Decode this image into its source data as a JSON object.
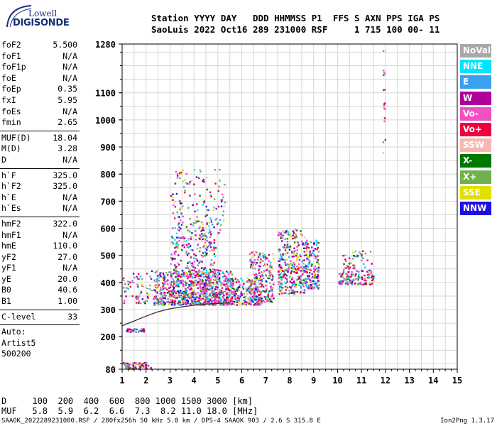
{
  "logo": {
    "line1": "Lowell",
    "line2": "DIGISONDE"
  },
  "header": {
    "line1": "Station YYYY DAY   DDD HHMMSS P1  FFS S AXN PPS IGA PS",
    "line2": "SaoLuis 2022 Oct16 289 231000 RSF     1 715 100 00- 11"
  },
  "params": {
    "group1": [
      {
        "name": "foF2",
        "value": "5.500"
      },
      {
        "name": "foF1",
        "value": "N/A"
      },
      {
        "name": "foF1p",
        "value": "N/A"
      },
      {
        "name": "foE",
        "value": "N/A"
      },
      {
        "name": "foEp",
        "value": "0.35"
      },
      {
        "name": "fxI",
        "value": "5.95"
      },
      {
        "name": "foEs",
        "value": "N/A"
      },
      {
        "name": "fmin",
        "value": "2.65"
      }
    ],
    "group2": [
      {
        "name": "MUF(D)",
        "value": "18.04"
      },
      {
        "name": "M(D)",
        "value": "3.28"
      },
      {
        "name": "D",
        "value": "N/A"
      }
    ],
    "group3": [
      {
        "name": "h`F",
        "value": "325.0"
      },
      {
        "name": "h`F2",
        "value": "325.0"
      },
      {
        "name": "h`E",
        "value": "N/A"
      },
      {
        "name": "h`Es",
        "value": "N/A"
      }
    ],
    "group4": [
      {
        "name": "hmF2",
        "value": "322.0"
      },
      {
        "name": "hmF1",
        "value": "N/A"
      },
      {
        "name": "hmE",
        "value": "110.0"
      },
      {
        "name": "yF2",
        "value": "27.0"
      },
      {
        "name": "yF1",
        "value": "N/A"
      },
      {
        "name": "yE",
        "value": "20.0"
      },
      {
        "name": "B0",
        "value": "40.6"
      },
      {
        "name": "B1",
        "value": "1.00"
      }
    ],
    "clevel": {
      "name": "C-level",
      "value": "33"
    },
    "auto": [
      "Auto:",
      "Artist5",
      "500200"
    ]
  },
  "legend": [
    {
      "label": "NoVal",
      "color": "#a8a8a8"
    },
    {
      "label": "NNE",
      "color": "#00e5ff"
    },
    {
      "label": "E",
      "color": "#3aa0f0"
    },
    {
      "label": "W",
      "color": "#b0009a"
    },
    {
      "label": "Vo-",
      "color": "#f050c0"
    },
    {
      "label": "Vo+",
      "color": "#f00040"
    },
    {
      "label": "SSW",
      "color": "#f8b8b0"
    },
    {
      "label": "X-",
      "color": "#007800"
    },
    {
      "label": "X+",
      "color": "#70b050"
    },
    {
      "label": "SSE",
      "color": "#e0e000"
    },
    {
      "label": "NNW",
      "color": "#1c10e0"
    }
  ],
  "chart_data": {
    "type": "scatter",
    "xlim": [
      1,
      15
    ],
    "ylim": [
      80,
      1280
    ],
    "xticks": [
      "1",
      "2",
      "3",
      "4",
      "5",
      "6",
      "7",
      "8",
      "9",
      "10",
      "11",
      "12",
      "13",
      "14",
      "15"
    ],
    "yticks": [
      {
        "v": 80,
        "label": "80"
      },
      {
        "v": 200,
        "label": "200"
      },
      {
        "v": 300,
        "label": "300"
      },
      {
        "v": 400,
        "label": "400"
      },
      {
        "v": 500,
        "label": "500"
      },
      {
        "v": 600,
        "label": "600"
      },
      {
        "v": 700,
        "label": "700"
      },
      {
        "v": 800,
        "label": "800"
      },
      {
        "v": 900,
        "label": "900"
      },
      {
        "v": 1000,
        "label": "1000"
      },
      {
        "v": 1100,
        "label": "1100"
      },
      {
        "v": 1280,
        "label": "1280"
      }
    ],
    "profile_solid": [
      [
        1.0,
        240
      ],
      [
        1.5,
        258
      ],
      [
        2.0,
        276
      ],
      [
        2.5,
        292
      ],
      [
        3.0,
        303
      ],
      [
        3.5,
        310
      ],
      [
        4.0,
        316
      ],
      [
        4.5,
        320
      ],
      [
        5.0,
        323
      ],
      [
        5.5,
        326
      ]
    ],
    "trace_dashed": [
      [
        1.0,
        410
      ],
      [
        1.5,
        398
      ],
      [
        2.0,
        380
      ],
      [
        2.5,
        360
      ],
      [
        3.0,
        347
      ],
      [
        3.5,
        343
      ],
      [
        4.0,
        344
      ],
      [
        4.5,
        350
      ],
      [
        5.0,
        360
      ],
      [
        5.5,
        371
      ]
    ],
    "echo_clusters": [
      {
        "x": [
          2.3,
          5.6
        ],
        "y": [
          320,
          450
        ],
        "density": 650
      },
      {
        "x": [
          3.0,
          4.9
        ],
        "y": [
          320,
          580
        ],
        "density": 380
      },
      {
        "x": [
          3.0,
          5.3
        ],
        "y": [
          580,
          820
        ],
        "density": 160
      },
      {
        "x": [
          5.3,
          6.8
        ],
        "y": [
          320,
          420
        ],
        "density": 240
      },
      {
        "x": [
          6.3,
          7.3
        ],
        "y": [
          330,
          520
        ],
        "density": 220
      },
      {
        "x": [
          7.5,
          8.6
        ],
        "y": [
          360,
          600
        ],
        "density": 300
      },
      {
        "x": [
          8.6,
          9.2
        ],
        "y": [
          380,
          560
        ],
        "density": 160
      },
      {
        "x": [
          10.0,
          11.5
        ],
        "y": [
          395,
          440
        ],
        "density": 120
      },
      {
        "x": [
          10.2,
          11.4
        ],
        "y": [
          440,
          520
        ],
        "density": 60
      },
      {
        "x": [
          1.0,
          2.5
        ],
        "y": [
          325,
          450
        ],
        "density": 60
      },
      {
        "x": [
          1.1,
          1.9
        ],
        "y": [
          220,
          232
        ],
        "density": 40
      },
      {
        "x": [
          1.0,
          2.2
        ],
        "y": [
          84,
          108
        ],
        "density": 70
      },
      {
        "x": [
          11.85,
          12.0
        ],
        "y": [
          880,
          1280
        ],
        "density": 18
      }
    ]
  },
  "bottom": {
    "d_line": "D     100  200  400  600  800 1000 1500 3000 [km]",
    "muf_line": "MUF   5.8  5.9  6.2  6.6  7.3  8.2 11.0 18.0 [MHz]"
  },
  "footer": {
    "file": "SAAOK_2022289231000.RSF / 280fx256h 50 kHz 5.0 km / DPS-4 SAAOK 903 / 2.6 S 315.8 E",
    "version": "Ion2Png 1.3.17"
  }
}
